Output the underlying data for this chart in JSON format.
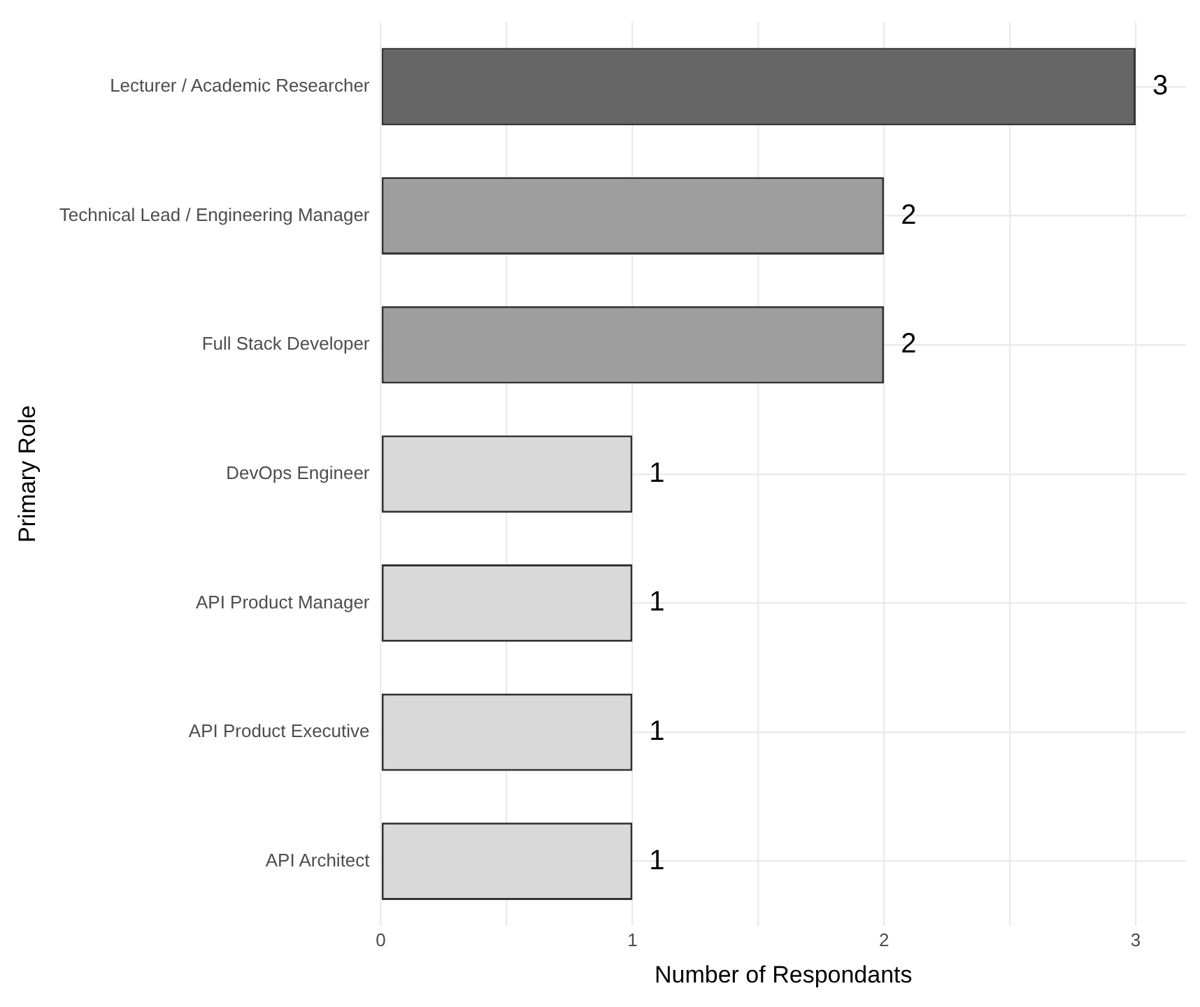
{
  "chart_data": {
    "type": "bar",
    "orientation": "horizontal",
    "xlabel": "Number of Respondants",
    "ylabel": "Primary Role",
    "categories": [
      "Lecturer / Academic Researcher",
      "Technical Lead / Engineering Manager",
      "Full Stack Developer",
      "DevOps Engineer",
      "API Product Manager",
      "API Product Executive",
      "API Architect"
    ],
    "values": [
      3,
      2,
      2,
      1,
      1,
      1,
      1
    ],
    "colors": [
      "#666666",
      "#9e9e9e",
      "#9e9e9e",
      "#d9d9d9",
      "#d9d9d9",
      "#d9d9d9",
      "#d9d9d9"
    ],
    "xlim": [
      0,
      3.2
    ],
    "xticks": [
      0,
      {
        "value": 0.5,
        "label": null
      },
      1,
      {
        "value": 1.5,
        "label": null
      },
      2,
      {
        "value": 2.5,
        "label": null
      },
      3
    ],
    "grid": true,
    "data_labels": true
  }
}
